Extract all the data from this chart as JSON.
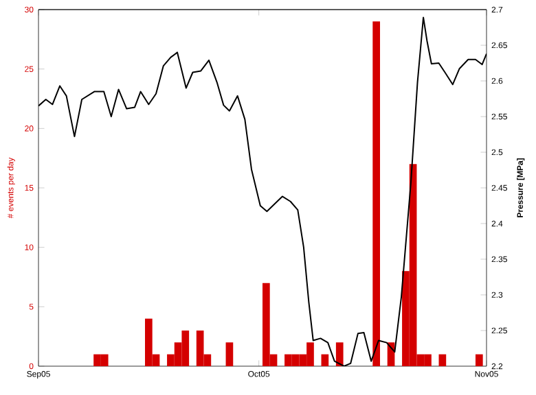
{
  "chart_data": {
    "type": "bar",
    "ylabel": "# events per day",
    "y2label": "Pressure [MPa]",
    "xlim": [
      "2005-09-01",
      "2005-11-01"
    ],
    "xticks": [
      {
        "value": "2005-09-01",
        "label": "Sep05"
      },
      {
        "value": "2005-10-01",
        "label": "Oct05"
      },
      {
        "value": "2005-11-01",
        "label": "Nov05"
      }
    ],
    "ylim": [
      0,
      30
    ],
    "yticks": [
      0,
      5,
      10,
      15,
      20,
      25,
      30
    ],
    "y2lim": [
      2.2,
      2.7
    ],
    "y2ticks": [
      2.2,
      2.25,
      2.3,
      2.35,
      2.4,
      2.45,
      2.5,
      2.55,
      2.6,
      2.65,
      2.7
    ],
    "series": [
      {
        "color": "#d40000",
        "x": [
          "2005-09-09",
          "2005-09-10",
          "2005-09-16",
          "2005-09-17",
          "2005-09-19",
          "2005-09-20",
          "2005-09-21",
          "2005-09-23",
          "2005-09-24",
          "2005-09-27",
          "2005-10-02",
          "2005-10-03",
          "2005-10-05",
          "2005-10-06",
          "2005-10-07",
          "2005-10-08",
          "2005-10-10",
          "2005-10-12",
          "2005-10-17",
          "2005-10-19",
          "2005-10-21",
          "2005-10-22",
          "2005-10-23",
          "2005-10-24",
          "2005-10-26",
          "2005-10-31"
        ],
        "values": [
          1,
          1,
          4,
          1,
          1,
          2,
          3,
          3,
          1,
          2,
          7,
          1,
          1,
          1,
          1,
          2,
          1,
          2,
          29,
          2,
          8,
          17,
          1,
          1,
          1,
          1
        ]
      },
      {
        "type": "line",
        "axis": "y2",
        "color": "#000000",
        "x": [
          "2005-09-01",
          "2005-09-02",
          "2005-09-02T21:36",
          "2005-09-03T21:36",
          "2005-09-04T19:12",
          "2005-09-05T21:36",
          "2005-09-06T21:36",
          "2005-09-08T14:24",
          "2005-09-09T21:36",
          "2005-09-10T21:36",
          "2005-09-11T21:36",
          "2005-09-13",
          "2005-09-14T02:24",
          "2005-09-14T21:36",
          "2005-09-16",
          "2005-09-17",
          "2005-09-18",
          "2005-09-19",
          "2005-09-19T21:36",
          "2005-09-21T02:24",
          "2005-09-22",
          "2005-09-23T02:24",
          "2005-09-24T04:48",
          "2005-09-25T07:12",
          "2005-09-26T04:48",
          "2005-09-27",
          "2005-09-28T02:24",
          "2005-09-29T02:24",
          "2005-09-30",
          "2005-10-01T04:48",
          "2005-10-02T02:24",
          "2005-10-02T19:12",
          "2005-10-04T04:48",
          "2005-10-05T07:12",
          "2005-10-06T07:12",
          "2005-10-07T02:24",
          "2005-10-07T19:12",
          "2005-10-08T09:36",
          "2005-10-09T09:36",
          "2005-10-10T09:36",
          "2005-10-11T07:12",
          "2005-10-12T14:24",
          "2005-10-13T12:00",
          "2005-10-14T12:00",
          "2005-10-15T07:12",
          "2005-10-16T07:12",
          "2005-10-17T07:12",
          "2005-10-18T09:36",
          "2005-10-19T12:00",
          "2005-10-20T09:36",
          "2005-10-21T16:48",
          "2005-10-22T14:24",
          "2005-10-23T09:36",
          "2005-10-23T21:36",
          "2005-10-24T12:00",
          "2005-10-25T12:00",
          "2005-10-26T09:36",
          "2005-10-27T09:36",
          "2005-10-28T07:12",
          "2005-10-29T12:00",
          "2005-10-30T12:00",
          "2005-10-31T09:36",
          "2005-11-01"
        ],
        "values": [
          2.565,
          2.574,
          2.567,
          2.593,
          2.579,
          2.522,
          2.574,
          2.585,
          2.585,
          2.55,
          2.588,
          2.561,
          2.563,
          2.585,
          2.567,
          2.582,
          2.621,
          2.633,
          2.64,
          2.59,
          2.612,
          2.614,
          2.629,
          2.598,
          2.566,
          2.558,
          2.579,
          2.546,
          2.476,
          2.425,
          2.417,
          2.424,
          2.438,
          2.431,
          2.419,
          2.367,
          2.29,
          2.236,
          2.239,
          2.233,
          2.207,
          2.2,
          2.204,
          2.246,
          2.247,
          2.207,
          2.236,
          2.233,
          2.22,
          2.297,
          2.457,
          2.598,
          2.689,
          2.656,
          2.624,
          2.625,
          2.611,
          2.595,
          2.617,
          2.63,
          2.63,
          2.623,
          2.638
        ]
      }
    ]
  }
}
